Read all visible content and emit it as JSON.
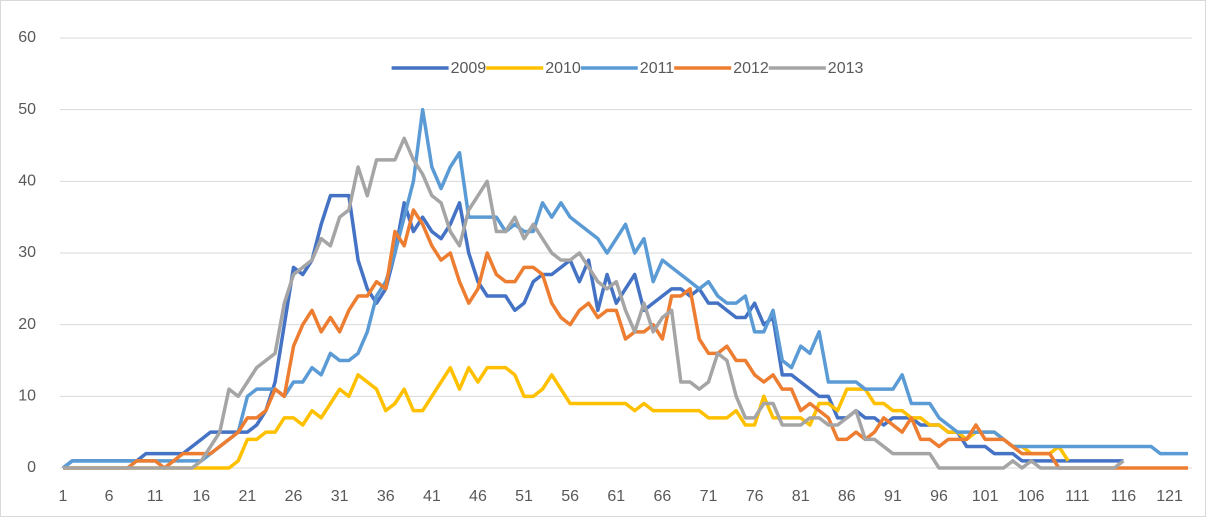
{
  "chart_data": {
    "type": "line",
    "categories": [
      1,
      null,
      null,
      null,
      null,
      6,
      null,
      null,
      null,
      null,
      11,
      null,
      null,
      null,
      null,
      16,
      null,
      null,
      null,
      null,
      21,
      null,
      null,
      null,
      null,
      26,
      null,
      null,
      null,
      null,
      31,
      null,
      null,
      null,
      null,
      36,
      null,
      null,
      null,
      null,
      41,
      null,
      null,
      null,
      null,
      46,
      null,
      null,
      null,
      null,
      51,
      null,
      null,
      null,
      null,
      56,
      null,
      null,
      null,
      null,
      61,
      null,
      null,
      null,
      null,
      66,
      null,
      null,
      null,
      null,
      71,
      null,
      null,
      null,
      null,
      76,
      null,
      null,
      null,
      null,
      81,
      null,
      null,
      null,
      null,
      86,
      null,
      null,
      null,
      null,
      91,
      null,
      null,
      null,
      null,
      96,
      null,
      null,
      null,
      null,
      101,
      null,
      null,
      null,
      null,
      106,
      null,
      null,
      null,
      null,
      111,
      null,
      null,
      null,
      null,
      116,
      null,
      null,
      null,
      null,
      121,
      null,
      null
    ],
    "series": [
      {
        "name": "2009",
        "color": "#4472c4",
        "values": [
          0,
          1,
          1,
          1,
          1,
          1,
          1,
          1,
          1,
          2,
          2,
          2,
          2,
          2,
          3,
          4,
          5,
          5,
          5,
          5,
          5,
          6,
          8,
          12,
          20,
          28,
          27,
          29,
          34,
          38,
          38,
          38,
          29,
          25,
          23,
          25,
          30,
          37,
          33,
          35,
          33,
          32,
          34,
          37,
          30,
          26,
          24,
          24,
          24,
          22,
          23,
          26,
          27,
          27,
          28,
          29,
          26,
          29,
          22,
          27,
          23,
          25,
          27,
          22,
          23,
          24,
          25,
          25,
          24,
          25,
          23,
          23,
          22,
          21,
          21,
          23,
          20,
          21,
          13,
          13,
          12,
          11,
          10,
          10,
          7,
          7,
          8,
          7,
          7,
          6,
          7,
          7,
          7,
          6,
          6,
          6,
          5,
          5,
          3,
          3,
          3,
          2,
          2,
          2,
          1,
          1,
          1,
          1,
          1,
          1,
          1,
          1,
          1,
          1,
          1,
          1,
          null,
          null,
          null,
          null,
          null,
          null,
          null
        ]
      },
      {
        "name": "2010",
        "color": "#ffc000",
        "values": [
          0,
          0,
          0,
          0,
          0,
          0,
          0,
          0,
          0,
          0,
          0,
          0,
          0,
          0,
          0,
          0,
          0,
          0,
          0,
          1,
          4,
          4,
          5,
          5,
          7,
          7,
          6,
          8,
          7,
          9,
          11,
          10,
          13,
          12,
          11,
          8,
          9,
          11,
          8,
          8,
          10,
          12,
          14,
          11,
          14,
          12,
          14,
          14,
          14,
          13,
          10,
          10,
          11,
          13,
          11,
          9,
          9,
          9,
          9,
          9,
          9,
          9,
          8,
          9,
          8,
          8,
          8,
          8,
          8,
          8,
          7,
          7,
          7,
          8,
          6,
          6,
          10,
          7,
          7,
          7,
          7,
          6,
          9,
          9,
          8,
          11,
          11,
          11,
          9,
          9,
          8,
          8,
          7,
          7,
          6,
          6,
          5,
          5,
          4,
          5,
          5,
          5,
          4,
          3,
          3,
          2,
          2,
          2,
          3,
          1,
          null,
          null,
          null,
          null,
          null,
          null,
          null,
          null,
          null,
          null,
          null,
          null,
          null
        ]
      },
      {
        "name": "2011",
        "color": "#5b9bd5",
        "values": [
          0,
          1,
          1,
          1,
          1,
          1,
          1,
          1,
          1,
          1,
          1,
          1,
          1,
          1,
          1,
          1,
          2,
          3,
          4,
          5,
          10,
          11,
          11,
          11,
          10,
          12,
          12,
          14,
          13,
          16,
          15,
          15,
          16,
          19,
          24,
          26,
          30,
          35,
          40,
          50,
          42,
          39,
          42,
          44,
          35,
          35,
          35,
          35,
          33,
          34,
          33,
          33,
          37,
          35,
          37,
          35,
          34,
          33,
          32,
          30,
          32,
          34,
          30,
          32,
          26,
          29,
          28,
          27,
          26,
          25,
          26,
          24,
          23,
          23,
          24,
          19,
          19,
          22,
          15,
          14,
          17,
          16,
          19,
          12,
          12,
          12,
          12,
          11,
          11,
          11,
          11,
          13,
          9,
          9,
          9,
          7,
          6,
          5,
          5,
          5,
          5,
          5,
          4,
          3,
          3,
          3,
          3,
          3,
          3,
          3,
          3,
          3,
          3,
          3,
          3,
          3,
          3,
          3,
          3,
          2,
          2,
          2,
          2
        ]
      },
      {
        "name": "2012",
        "color": "#ed7d31",
        "values": [
          0,
          0,
          0,
          0,
          0,
          0,
          0,
          0,
          1,
          1,
          1,
          0,
          1,
          2,
          2,
          2,
          2,
          3,
          4,
          5,
          7,
          7,
          8,
          11,
          10,
          17,
          20,
          22,
          19,
          21,
          19,
          22,
          24,
          24,
          26,
          25,
          33,
          31,
          36,
          34,
          31,
          29,
          30,
          26,
          23,
          25,
          30,
          27,
          26,
          26,
          28,
          28,
          27,
          23,
          21,
          20,
          22,
          23,
          21,
          22,
          22,
          18,
          19,
          19,
          20,
          18,
          24,
          24,
          25,
          18,
          16,
          16,
          17,
          15,
          15,
          13,
          12,
          13,
          11,
          11,
          8,
          9,
          8,
          7,
          4,
          4,
          5,
          4,
          5,
          7,
          6,
          5,
          7,
          4,
          4,
          3,
          4,
          4,
          4,
          6,
          4,
          4,
          4,
          3,
          2,
          2,
          2,
          2,
          0,
          0,
          0,
          0,
          0,
          0,
          0,
          0,
          0,
          0,
          0,
          0,
          0,
          0,
          0
        ]
      },
      {
        "name": "2013",
        "color": "#a5a5a5",
        "values": [
          0,
          0,
          0,
          0,
          0,
          0,
          0,
          0,
          0,
          0,
          0,
          0,
          0,
          0,
          0,
          1,
          3,
          5,
          11,
          10,
          12,
          14,
          15,
          16,
          23,
          27,
          28,
          29,
          32,
          31,
          35,
          36,
          42,
          38,
          43,
          43,
          43,
          46,
          43,
          41,
          38,
          37,
          33,
          31,
          36,
          38,
          40,
          33,
          33,
          35,
          32,
          34,
          32,
          30,
          29,
          29,
          30,
          28,
          26,
          25,
          26,
          22,
          19,
          23,
          19,
          21,
          22,
          12,
          12,
          11,
          12,
          16,
          15,
          10,
          7,
          7,
          9,
          9,
          6,
          6,
          6,
          7,
          7,
          6,
          6,
          7,
          8,
          4,
          4,
          3,
          2,
          2,
          2,
          2,
          2,
          0,
          0,
          0,
          0,
          0,
          0,
          0,
          0,
          1,
          0,
          1,
          0,
          0,
          0,
          0,
          0,
          0,
          0,
          0,
          0,
          1,
          null,
          null,
          null,
          null,
          null,
          null,
          null
        ]
      }
    ],
    "ylim": [
      0,
      60
    ],
    "yticks": [
      0,
      10,
      20,
      30,
      40,
      50,
      60
    ],
    "grid": true,
    "legend": "top"
  }
}
